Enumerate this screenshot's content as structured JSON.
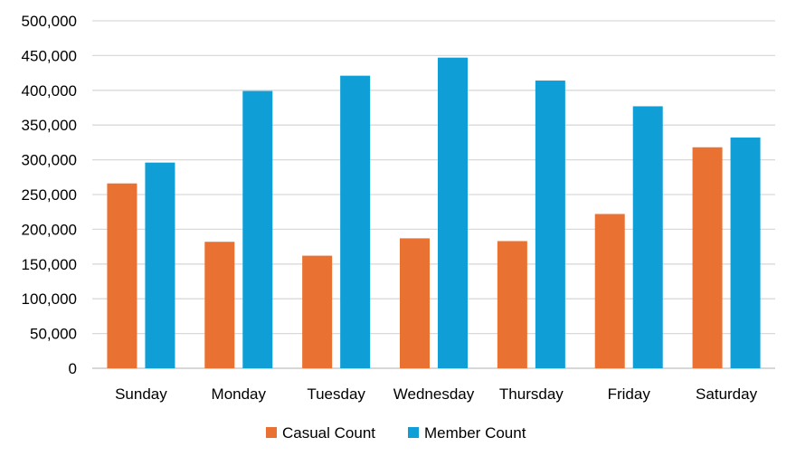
{
  "chart_data": {
    "type": "bar",
    "title": "",
    "xlabel": "",
    "ylabel": "",
    "categories": [
      "Sunday",
      "Monday",
      "Tuesday",
      "Wednesday",
      "Thursday",
      "Friday",
      "Saturday"
    ],
    "series": [
      {
        "name": "Casual Count",
        "color": "#E97132",
        "values": [
          266000,
          182000,
          162000,
          187000,
          183000,
          222000,
          318000
        ]
      },
      {
        "name": "Member Count",
        "color": "#0F9ED5",
        "values": [
          296000,
          399000,
          421000,
          447000,
          414000,
          377000,
          332000
        ]
      }
    ],
    "ylim": [
      0,
      500000
    ],
    "yticks": [
      0,
      50000,
      100000,
      150000,
      200000,
      250000,
      300000,
      350000,
      400000,
      450000,
      500000
    ],
    "ytick_labels": [
      "0",
      "50,000",
      "100,000",
      "150,000",
      "200,000",
      "250,000",
      "300,000",
      "350,000",
      "400,000",
      "450,000",
      "500,000"
    ],
    "grid": true,
    "legend_position": "bottom"
  }
}
